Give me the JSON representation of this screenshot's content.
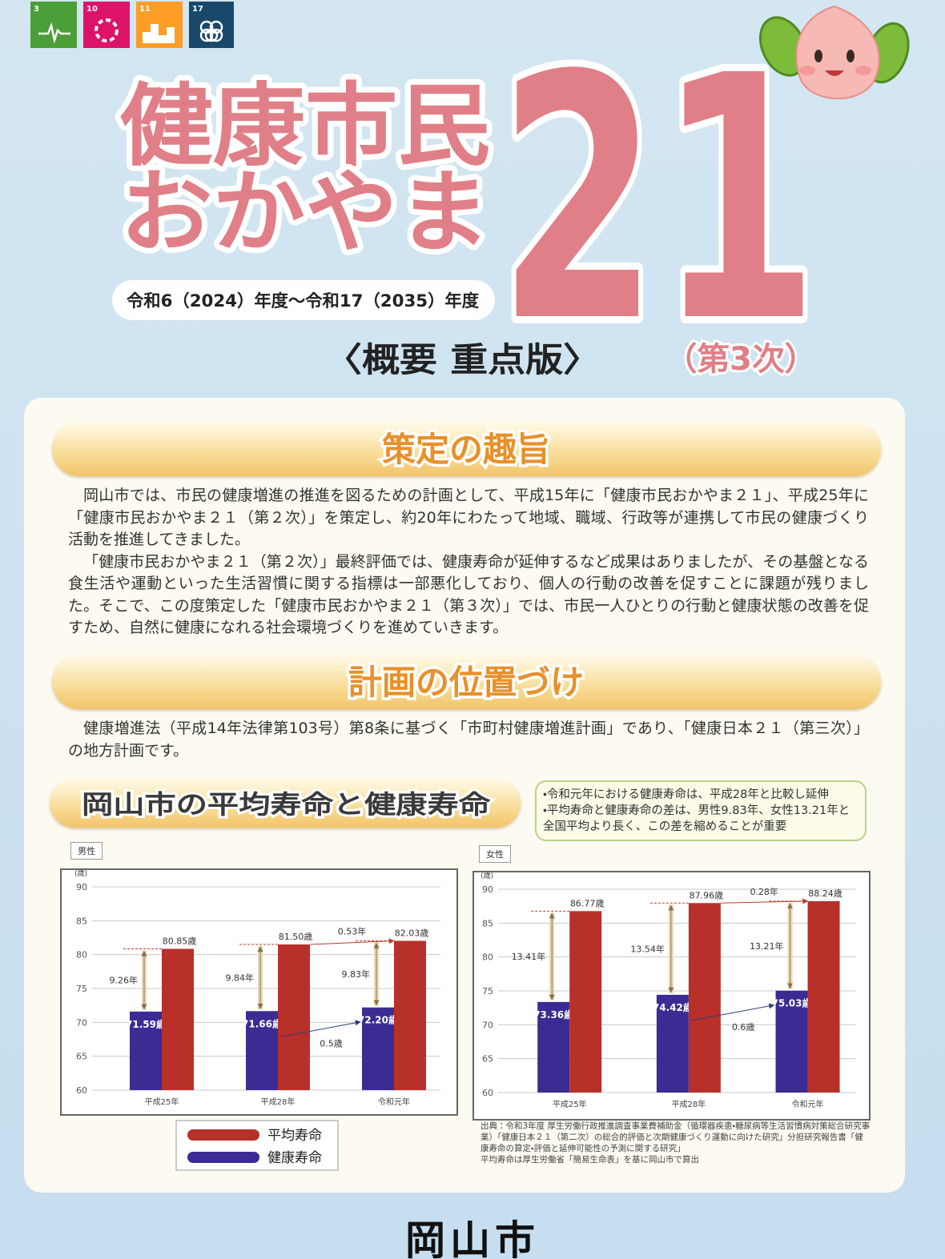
{
  "sdg_icons": [
    "3",
    "10",
    "11",
    "17"
  ],
  "header": {
    "title_line1": "健康市民",
    "title_line2": "おかやま",
    "title_number": "21",
    "period": "令和6（2024）年度～令和17（2035）年度",
    "subtitle": "〈概要 重点版〉",
    "edition": "（第3次）"
  },
  "sections": [
    {
      "heading": "策定の趣旨",
      "paragraphs": [
        "岡山市では、市民の健康増進の推進を図るための計画として、平成15年に「健康市民おかやま２１」、平成25年に「健康市民おかやま２１（第２次）」を策定し、約20年にわたって地域、職域、行政等が連携して市民の健康づくり活動を推進してきました。",
        "「健康市民おかやま２１（第２次）」最終評価では、健康寿命が延伸するなど成果はありましたが、その基盤となる食生活や運動といった生活習慣に関する指標は一部悪化しており、個人の行動の改善を促すことに課題が残りました。そこで、この度策定した「健康市民おかやま２１（第３次）」では、市民一人ひとりの行動と健康状態の改善を促すため、自然に健康になれる社会環境づくりを進めていきます。"
      ]
    },
    {
      "heading": "計画の位置づけ",
      "paragraphs": [
        "健康増進法（平成14年法律第103号）第8条に基づく「市町村健康増進計画」であり、「健康日本２１（第三次）」の地方計画です。"
      ]
    }
  ],
  "life_expectancy": {
    "heading": "岡山市の平均寿命と健康寿命",
    "notes": [
      "・令和元年における健康寿命は、平成28年と比較し延伸",
      "・平均寿命と健康寿命の差は、男性9.83年、女性13.21年と全国平均より長く、この差を縮めることが重要"
    ],
    "charts": [
      {
        "type": "bar",
        "title": "男性",
        "y_label": "(歳)",
        "categories": [
          "平成25年",
          "平成28年",
          "令和元年"
        ],
        "series": [
          {
            "name": "平均寿命",
            "color": "#b8302a",
            "values": [
              80.85,
              81.5,
              82.03
            ],
            "value_labels": [
              "80.85歳",
              "81.50歳",
              "82.03歳"
            ]
          },
          {
            "name": "健康寿命",
            "color": "#3b2b93",
            "values": [
              71.59,
              71.66,
              72.2
            ],
            "value_labels": [
              "71.59歳",
              "71.66歳",
              "72.20歳"
            ]
          }
        ],
        "gap_labels": [
          "9.26年",
          "9.84年",
          "9.83年"
        ],
        "avg_change_label": "0.53年",
        "healthy_change_label": "0.5歳",
        "ylim": [
          60,
          90
        ],
        "yticks": [
          60,
          65,
          70,
          75,
          80,
          85,
          90
        ],
        "grid": true
      },
      {
        "type": "bar",
        "title": "女性",
        "y_label": "(歳)",
        "categories": [
          "平成25年",
          "平成28年",
          "令和元年"
        ],
        "series": [
          {
            "name": "平均寿命",
            "color": "#b8302a",
            "values": [
              86.77,
              87.96,
              88.24
            ],
            "value_labels": [
              "86.77歳",
              "87.96歳",
              "88.24歳"
            ]
          },
          {
            "name": "健康寿命",
            "color": "#3b2b93",
            "values": [
              73.36,
              74.42,
              75.03
            ],
            "value_labels": [
              "73.36歳",
              "74.42歳",
              "75.03歳"
            ]
          }
        ],
        "gap_labels": [
          "13.41年",
          "13.54年",
          "13.21年"
        ],
        "avg_change_label": "0.28年",
        "healthy_change_label": "0.6歳",
        "ylim": [
          60,
          90
        ],
        "yticks": [
          60,
          65,
          70,
          75,
          80,
          85,
          90
        ],
        "grid": true
      }
    ],
    "source": [
      "出典：令和3年度 厚生労働行政推進調査事業費補助金（循環器疾患・糖尿病等生活習慣病対策総合研究事業）「健康日本２１（第二次）の総合的評価と次期健康づくり運動に向けた研究」分担研究報告書「健康寿命の算定・評価と延伸可能性の予測に関する研究」",
      "平均寿命は厚生労働省「簡易生命表」を基に岡山市で算出"
    ]
  },
  "footer": "岡山市"
}
